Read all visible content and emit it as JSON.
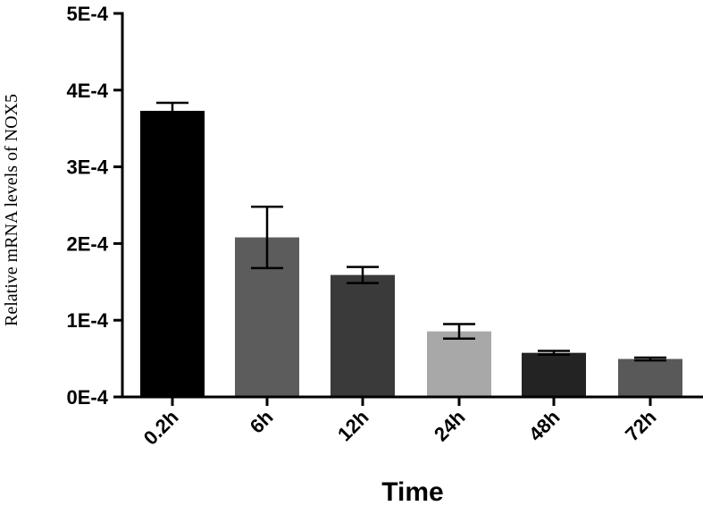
{
  "chart_data": {
    "type": "bar",
    "title": "",
    "xlabel": "Time",
    "ylabel": "Relative mRNA levels of NOX5",
    "categories": [
      "0.2h",
      "6h",
      "12h",
      "24h",
      "48h",
      "72h"
    ],
    "values": [
      0.000373,
      0.000208,
      0.000159,
      8.55e-05,
      5.75e-05,
      4.95e-05
    ],
    "errors": [
      1.05e-05,
      4e-05,
      1.05e-05,
      9.5e-06,
      2.5e-06,
      1.8e-06
    ],
    "colors": [
      "#000000",
      "#5c5c5c",
      "#3a3a3a",
      "#a8a8a8",
      "#232323",
      "#595959"
    ],
    "ylim": [
      0,
      0.0005
    ],
    "yticks": [
      0,
      0.0001,
      0.0002,
      0.0003,
      0.0004,
      0.0005
    ],
    "ytick_labels": [
      "0E-4",
      "1E-4",
      "2E-4",
      "3E-4",
      "4E-4",
      "5E-4"
    ],
    "grid": false,
    "legend": "none"
  }
}
